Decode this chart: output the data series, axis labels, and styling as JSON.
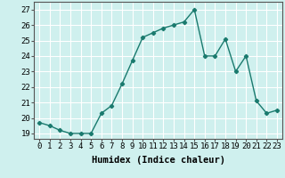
{
  "x": [
    0,
    1,
    2,
    3,
    4,
    5,
    6,
    7,
    8,
    9,
    10,
    11,
    12,
    13,
    14,
    15,
    16,
    17,
    18,
    19,
    20,
    21,
    22,
    23
  ],
  "y": [
    19.7,
    19.5,
    19.2,
    19.0,
    19.0,
    19.0,
    20.3,
    20.8,
    22.2,
    23.7,
    25.2,
    25.5,
    25.8,
    26.0,
    26.2,
    27.0,
    24.0,
    24.0,
    25.1,
    23.0,
    24.0,
    21.1,
    20.3,
    20.5
  ],
  "line_color": "#1a7a6e",
  "marker": "D",
  "marker_size": 2.2,
  "line_width": 1.0,
  "xlabel": "Humidex (Indice chaleur)",
  "ylabel_ticks": [
    19,
    20,
    21,
    22,
    23,
    24,
    25,
    26,
    27
  ],
  "xlim": [
    -0.5,
    23.5
  ],
  "ylim": [
    18.65,
    27.5
  ],
  "background_color": "#cff0ee",
  "grid_color": "#ffffff",
  "xlabel_fontsize": 7.5,
  "tick_fontsize": 6.5
}
